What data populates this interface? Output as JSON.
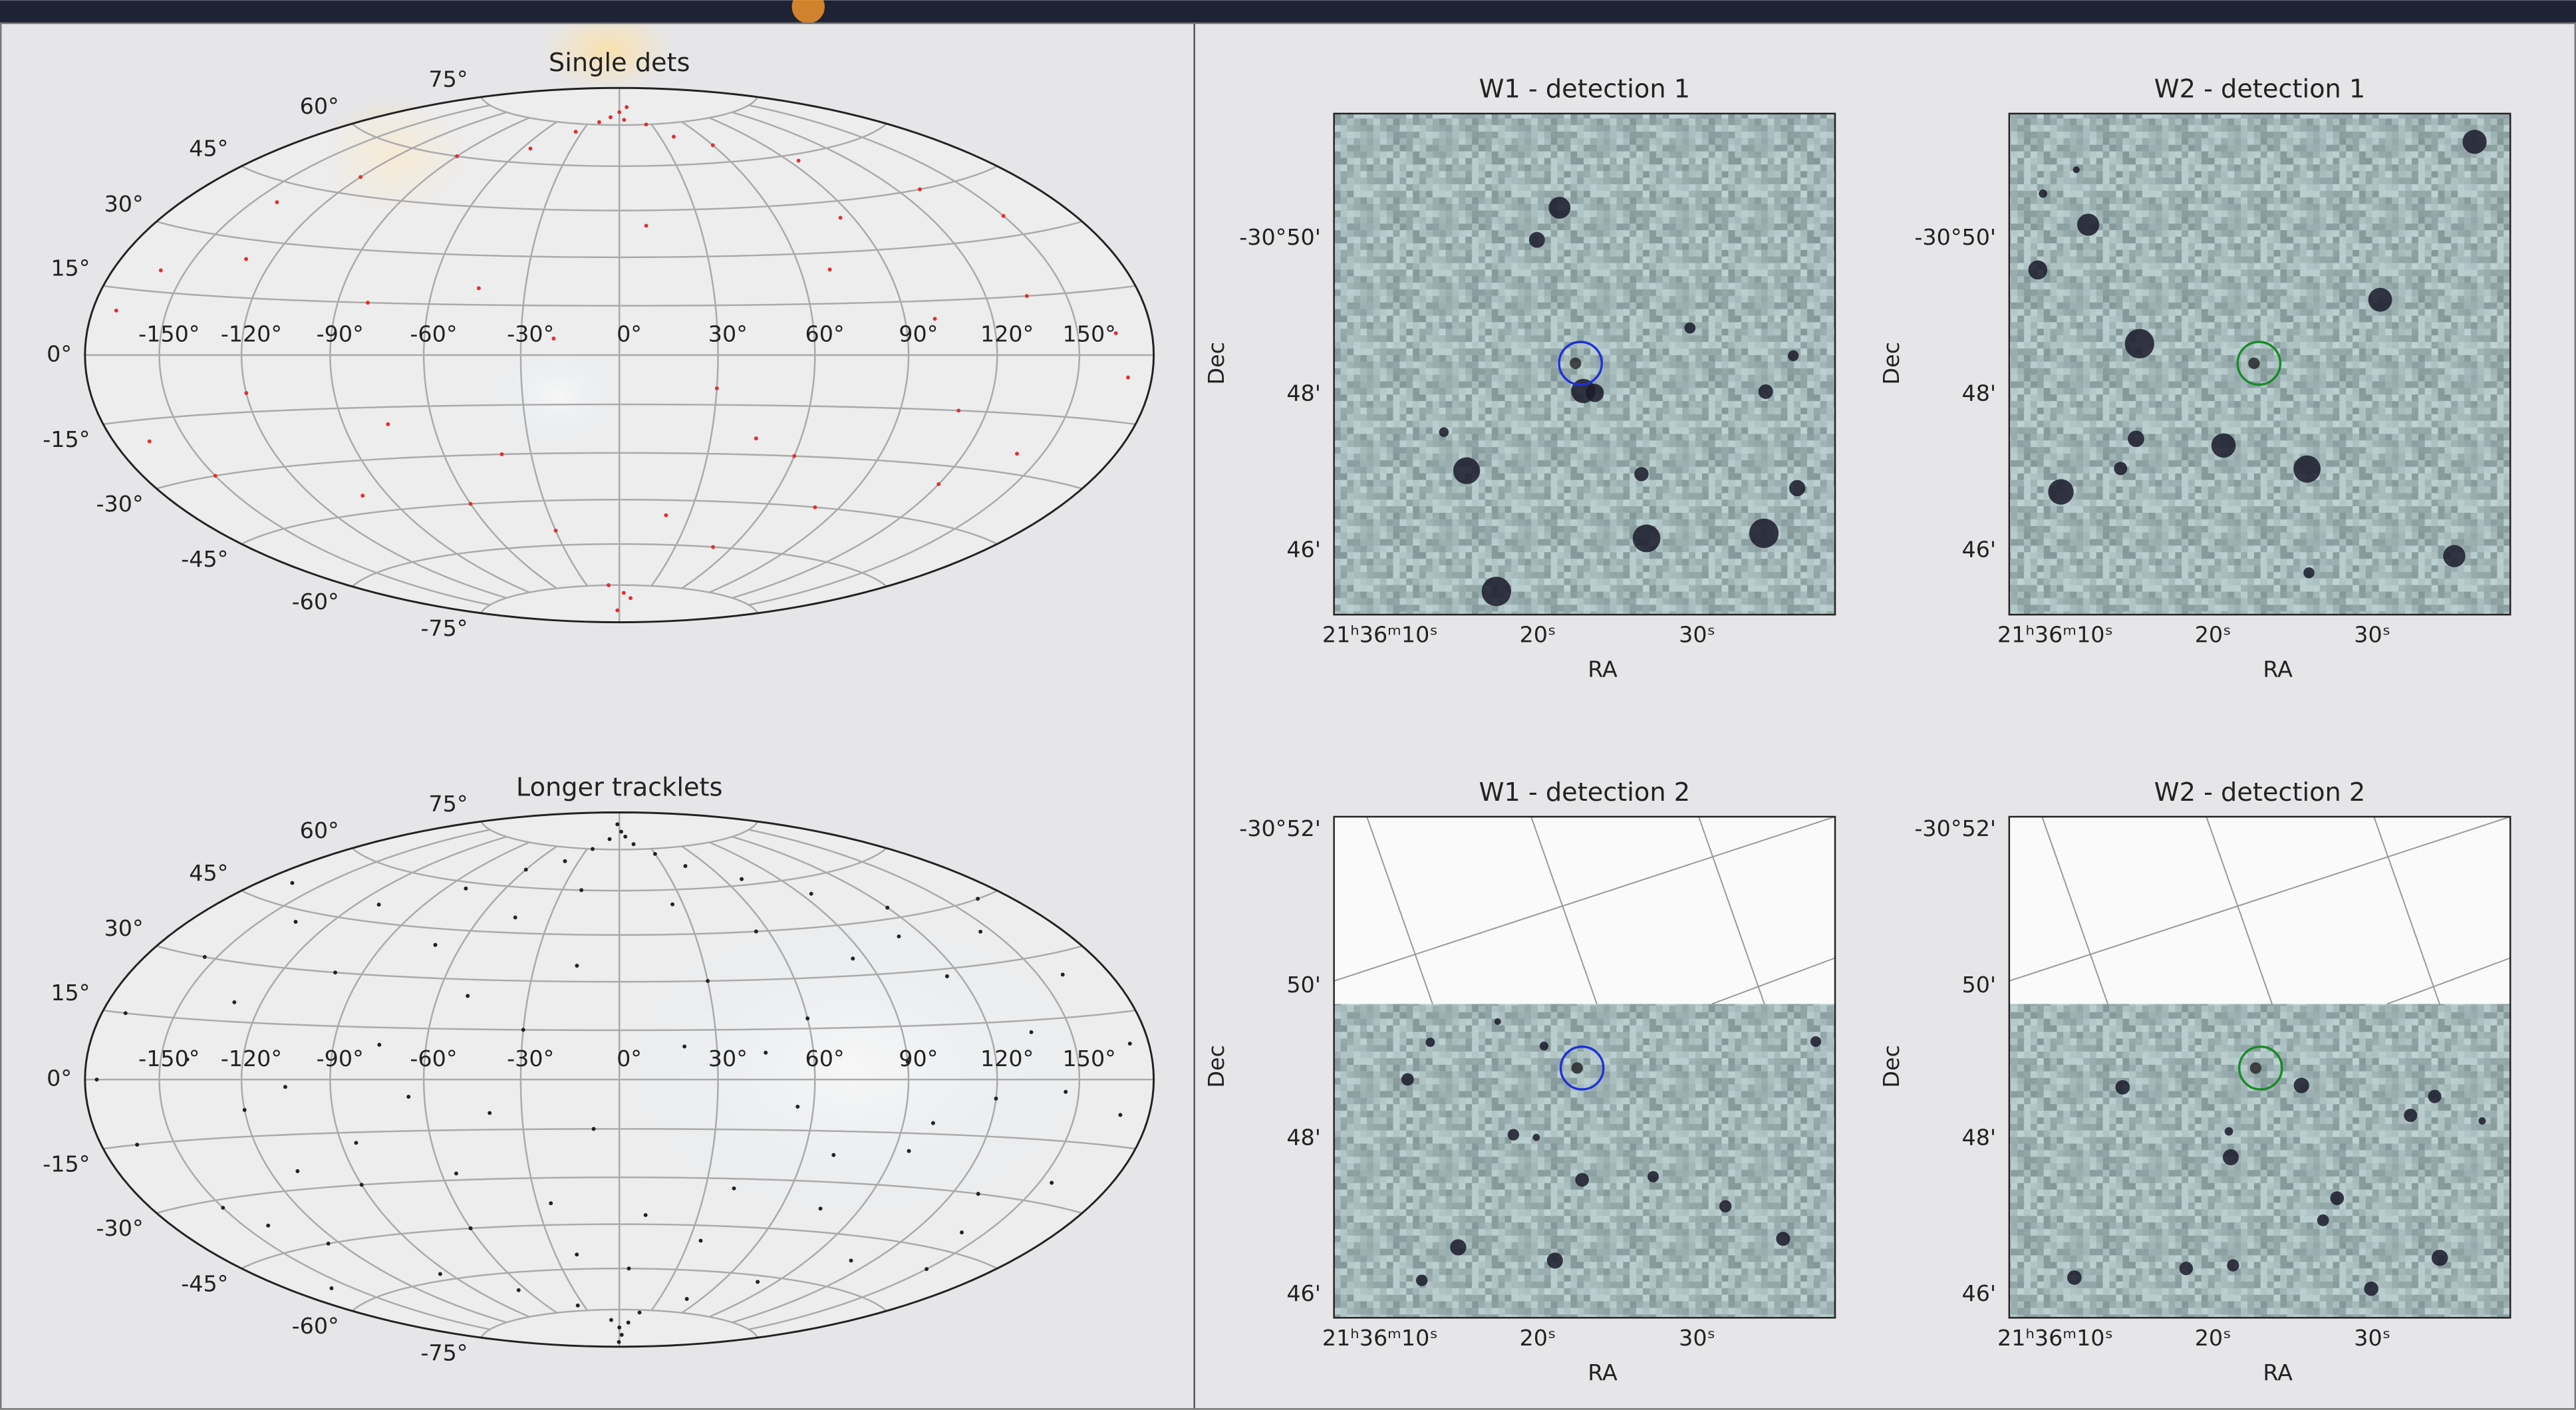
{
  "sky_maps": [
    {
      "title": "Single dets",
      "lon_ticks": [
        {
          "value": -150,
          "label": "-150°"
        },
        {
          "value": -120,
          "label": "-120°"
        },
        {
          "value": -90,
          "label": "-90°"
        },
        {
          "value": -60,
          "label": "-60°"
        },
        {
          "value": -30,
          "label": "-30°"
        },
        {
          "value": 0,
          "label": "0°"
        },
        {
          "value": 30,
          "label": "30°"
        },
        {
          "value": 60,
          "label": "60°"
        },
        {
          "value": 90,
          "label": "90°"
        },
        {
          "value": 120,
          "label": "120°"
        },
        {
          "value": 150,
          "label": "150°"
        }
      ],
      "lat_ticks": [
        {
          "value": 75,
          "label": "75°"
        },
        {
          "value": 60,
          "label": "60°"
        },
        {
          "value": 45,
          "label": "45°"
        },
        {
          "value": 30,
          "label": "30°"
        },
        {
          "value": 15,
          "label": "15°"
        },
        {
          "value": 0,
          "label": "0°"
        },
        {
          "value": -15,
          "label": "-15°"
        },
        {
          "value": -30,
          "label": "-30°"
        },
        {
          "value": -45,
          "label": "-45°"
        },
        {
          "value": -60,
          "label": "-60°"
        },
        {
          "value": -75,
          "label": "-75°"
        }
      ],
      "points": [
        [
          -10,
          78
        ],
        [
          0,
          80
        ],
        [
          5,
          77
        ],
        [
          12,
          82
        ],
        [
          -20,
          76
        ],
        [
          25,
          75
        ],
        [
          -35,
          72
        ],
        [
          40,
          70
        ],
        [
          -55,
          65
        ],
        [
          60,
          66
        ],
        [
          -90,
          60
        ],
        [
          95,
          58
        ],
        [
          -120,
          50
        ],
        [
          -140,
          40
        ],
        [
          130,
          45
        ],
        [
          150,
          35
        ],
        [
          -160,
          20
        ],
        [
          -170,
          10
        ],
        [
          165,
          5
        ],
        [
          170,
          -5
        ],
        [
          -165,
          -20
        ],
        [
          -150,
          -30
        ],
        [
          140,
          -25
        ],
        [
          120,
          -35
        ],
        [
          -100,
          -40
        ],
        [
          -60,
          -45
        ],
        [
          -30,
          -55
        ],
        [
          20,
          -50
        ],
        [
          50,
          -60
        ],
        [
          80,
          -45
        ],
        [
          -10,
          -75
        ],
        [
          5,
          -78
        ],
        [
          15,
          -80
        ],
        [
          -5,
          -85
        ],
        [
          30,
          -10
        ],
        [
          -45,
          20
        ],
        [
          -80,
          15
        ],
        [
          70,
          25
        ],
        [
          100,
          10
        ],
        [
          110,
          -15
        ],
        [
          -120,
          -10
        ],
        [
          -20,
          5
        ],
        [
          45,
          -25
        ],
        [
          -75,
          -20
        ],
        [
          85,
          40
        ],
        [
          -130,
          25
        ],
        [
          135,
          15
        ],
        [
          60,
          -30
        ],
        [
          -40,
          -30
        ],
        [
          10,
          40
        ]
      ]
    },
    {
      "title": "Longer tracklets",
      "lon_ticks": [
        {
          "value": -150,
          "label": "-150°"
        },
        {
          "value": -120,
          "label": "-120°"
        },
        {
          "value": -90,
          "label": "-90°"
        },
        {
          "value": -60,
          "label": "-60°"
        },
        {
          "value": -30,
          "label": "-30°"
        },
        {
          "value": 0,
          "label": "0°"
        },
        {
          "value": 30,
          "label": "30°"
        },
        {
          "value": 60,
          "label": "60°"
        },
        {
          "value": 90,
          "label": "90°"
        },
        {
          "value": 120,
          "label": "120°"
        },
        {
          "value": 150,
          "label": "150°"
        }
      ],
      "lat_ticks": [
        {
          "value": 75,
          "label": "75°"
        },
        {
          "value": 60,
          "label": "60°"
        },
        {
          "value": 45,
          "label": "45°"
        },
        {
          "value": 30,
          "label": "30°"
        },
        {
          "value": 15,
          "label": "15°"
        },
        {
          "value": 0,
          "label": "0°"
        },
        {
          "value": -15,
          "label": "-15°"
        },
        {
          "value": -30,
          "label": "-30°"
        },
        {
          "value": -45,
          "label": "-45°"
        },
        {
          "value": -60,
          "label": "-60°"
        },
        {
          "value": -75,
          "label": "-75°"
        }
      ],
      "points": [
        [
          -5,
          85
        ],
        [
          3,
          82
        ],
        [
          8,
          80
        ],
        [
          -12,
          79
        ],
        [
          15,
          77
        ],
        [
          -25,
          75
        ],
        [
          30,
          73
        ],
        [
          -40,
          70
        ],
        [
          45,
          68
        ],
        [
          -60,
          66
        ],
        [
          70,
          62
        ],
        [
          -80,
          58
        ],
        [
          95,
          55
        ],
        [
          -110,
          50
        ],
        [
          120,
          48
        ],
        [
          -135,
          42
        ],
        [
          145,
          38
        ],
        [
          -155,
          30
        ],
        [
          160,
          25
        ],
        [
          -170,
          15
        ],
        [
          172,
          8
        ],
        [
          -175,
          0
        ],
        [
          168,
          -8
        ],
        [
          -165,
          -15
        ],
        [
          155,
          -25
        ],
        [
          -150,
          -32
        ],
        [
          140,
          -40
        ],
        [
          -125,
          -45
        ],
        [
          110,
          -52
        ],
        [
          -95,
          -58
        ],
        [
          80,
          -62
        ],
        [
          -65,
          -66
        ],
        [
          50,
          -70
        ],
        [
          -35,
          -73
        ],
        [
          20,
          -76
        ],
        [
          -10,
          -79
        ],
        [
          0,
          -82
        ],
        [
          6,
          -85
        ],
        [
          -3,
          -88
        ],
        [
          12,
          -80
        ],
        [
          -20,
          60
        ],
        [
          25,
          55
        ],
        [
          -45,
          50
        ],
        [
          55,
          45
        ],
        [
          -70,
          40
        ],
        [
          85,
          35
        ],
        [
          -100,
          30
        ],
        [
          115,
          28
        ],
        [
          -130,
          20
        ],
        [
          135,
          12
        ],
        [
          -140,
          5
        ],
        [
          145,
          -3
        ],
        [
          -120,
          -8
        ],
        [
          100,
          -12
        ],
        [
          -85,
          -18
        ],
        [
          70,
          -22
        ],
        [
          -55,
          -28
        ],
        [
          40,
          -33
        ],
        [
          -25,
          -38
        ],
        [
          10,
          -42
        ],
        [
          -15,
          35
        ],
        [
          30,
          30
        ],
        [
          -50,
          25
        ],
        [
          60,
          18
        ],
        [
          -75,
          10
        ],
        [
          90,
          5
        ],
        [
          -105,
          -2
        ],
        [
          120,
          -5
        ],
        [
          -90,
          -30
        ],
        [
          75,
          -38
        ],
        [
          -60,
          -45
        ],
        [
          35,
          -50
        ],
        [
          -20,
          -55
        ],
        [
          5,
          -60
        ],
        [
          -30,
          15
        ],
        [
          45,
          8
        ],
        [
          -65,
          -5
        ],
        [
          95,
          -20
        ],
        [
          -110,
          -25
        ],
        [
          130,
          -30
        ],
        [
          -140,
          -38
        ],
        [
          150,
          -50
        ],
        [
          -160,
          -55
        ],
        [
          165,
          45
        ],
        [
          -165,
          50
        ],
        [
          20,
          10
        ],
        [
          -8,
          -15
        ],
        [
          55,
          -8
        ],
        [
          -40,
          -10
        ],
        [
          110,
          40
        ]
      ]
    }
  ],
  "cutouts": [
    {
      "title": "W1 - detection 1",
      "x_label": "RA",
      "y_label": "Dec",
      "y_ticks": [
        "-30°50'",
        "48'",
        "46'"
      ],
      "x_ticks": [
        "21ʰ36ᵐ10ˢ",
        "20ˢ",
        "30ˢ"
      ]
    },
    {
      "title": "W2 - detection 1",
      "x_label": "RA",
      "y_label": "Dec",
      "y_ticks": [
        "-30°50'",
        "48'",
        "46'"
      ],
      "x_ticks": [
        "21ʰ36ᵐ10ˢ",
        "20ˢ",
        "30ˢ"
      ]
    },
    {
      "title": "W1 - detection 2",
      "x_label": "RA",
      "y_label": "Dec",
      "y_ticks": [
        "-30°52'",
        "50'",
        "48'",
        "46'"
      ],
      "x_ticks": [
        "21ʰ36ᵐ10ˢ",
        "20ˢ",
        "30ˢ"
      ]
    },
    {
      "title": "W2 - detection 2",
      "x_label": "RA",
      "y_label": "Dec",
      "y_ticks": [
        "-30°52'",
        "50'",
        "48'",
        "46'"
      ],
      "x_ticks": [
        "21ʰ36ᵐ10ˢ",
        "20ˢ",
        "30ˢ"
      ]
    }
  ]
}
